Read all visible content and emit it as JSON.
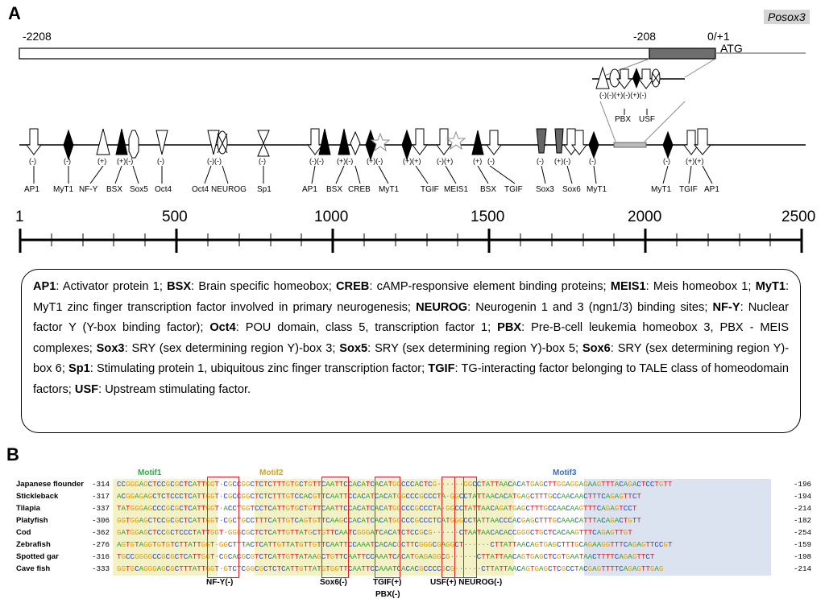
{
  "panel_a": {
    "letter": "A",
    "gene": "Posox3",
    "coords": {
      "start": "-2208",
      "mid": "-208",
      "end": "0/+1",
      "atg": "ATG"
    },
    "inset": {
      "signs": "(-)(-)(+)(-)(+)(-)",
      "labels": [
        "PBX",
        "USF"
      ]
    },
    "sites": [
      {
        "sign": "(-)",
        "label": "AP1"
      },
      {
        "sign": "(-)",
        "label": "MyT1"
      },
      {
        "sign": "(+)",
        "label": "NF-Y"
      },
      {
        "sign": "(+)(-)",
        "label": "BSX"
      },
      {
        "sign": "",
        "label": "Sox5"
      },
      {
        "sign": "(-)",
        "label": "Oct4"
      },
      {
        "sign": "(-)(-)",
        "label": "Oct4"
      },
      {
        "sign": "",
        "label": "NEUROG"
      },
      {
        "sign": "(-)",
        "label": "Sp1"
      },
      {
        "sign": "(-)(-)",
        "label": "AP1"
      },
      {
        "sign": "(+)(-)",
        "label": "BSX"
      },
      {
        "sign": "",
        "label": "CREB"
      },
      {
        "sign": "(+)(-)",
        "label": "MyT1"
      },
      {
        "sign": "(+)(+)",
        "label": "TGIF"
      },
      {
        "sign": "(-)(+)",
        "label": "MEIS1"
      },
      {
        "sign": "(+)",
        "label": "BSX"
      },
      {
        "sign": "(-)",
        "label": "TGIF"
      },
      {
        "sign": "(-)",
        "label": "Sox3"
      },
      {
        "sign": "(+)(-)",
        "label": "Sox6"
      },
      {
        "sign": "(-)",
        "label": "MyT1"
      },
      {
        "sign": "(-)",
        "label": "MyT1"
      },
      {
        "sign": "(+)(+)",
        "label": "TGIF"
      },
      {
        "sign": "",
        "label": "AP1"
      }
    ],
    "scale": {
      "ticks": [
        "1",
        "500",
        "1000",
        "1500",
        "2000",
        "2500"
      ]
    }
  },
  "legend": {
    "entries": [
      {
        "abbr": "AP1",
        "desc": "Activator protein 1"
      },
      {
        "abbr": "BSX",
        "desc": "Brain specific homeobox"
      },
      {
        "abbr": "CREB",
        "desc": "cAMP-responsive element binding proteins"
      },
      {
        "abbr": "MEIS1",
        "desc": "Meis homeobox 1"
      },
      {
        "abbr": "MyT1",
        "desc": "MyT1 zinc finger transcription factor involved in primary neurogenesis"
      },
      {
        "abbr": "NEUROG",
        "desc": "Neurogenin 1 and 3 (ngn1/3) binding sites"
      },
      {
        "abbr": "NF-Y",
        "desc": "Nuclear factor Y (Y-box binding factor)"
      },
      {
        "abbr": "Oct4",
        "desc": "POU domain, class 5, transcription factor 1"
      },
      {
        "abbr": "PBX",
        "desc": "Pre-B-cell leukemia homeobox 3, PBX - MEIS complexes"
      },
      {
        "abbr": "Sox3",
        "desc": "SRY (sex determining region Y)-box 3"
      },
      {
        "abbr": "Sox5",
        "desc": "SRY (sex determining region Y)-box 5"
      },
      {
        "abbr": "Sox6",
        "desc": "SRY (sex determining region Y)-box 6"
      },
      {
        "abbr": "Sp1",
        "desc": "Stimulating protein 1, ubiquitous zinc finger transcription factor"
      },
      {
        "abbr": "TGIF",
        "desc": "TG-interacting factor belonging to TALE class of homeodomain factors"
      },
      {
        "abbr": "USF",
        "desc": "Upstream stimulating factor"
      }
    ]
  },
  "panel_b": {
    "letter": "B",
    "motifs": [
      "Motif1",
      "Motif2",
      "Motif3"
    ],
    "rows": [
      {
        "species": "Japanese flounder",
        "start": "-314",
        "seq": "CCGGGAGCTCCGCGCTCATTGGT·CGCCGGCTCTCTTTGTGCTGTTCAATTCCACATCACATGGCCCACTCG······GGCCTATTAACACATGAGCTTGGAGGAGAAGTTTACAGACTCCTGTT",
        "end": "-196"
      },
      {
        "species": "Stickleback",
        "start": "-317",
        "seq": "ACGGAGAGCTCTCCCTCATTGGT·CGCCGGCTCTCTTTGTCCACGTTCAATTCCACATCACATGGCCCGCCCTA·GGCCTATTAACACATGAGCTTTGCCAACAACTTTCAGAGTTCT",
        "end": "-194"
      },
      {
        "species": "Tilapia",
        "start": "-337",
        "seq": "TATGGGAGCCCGCGCTCATTGGT·ACCTGGTCCTCATTGTGCTGTTCAATTCCACATCACATGGCCCGCCCTA·GGCCTATTAACAGATGAGCTTTGCCAACAAGTTTCAGAGTCCT",
        "end": "-214"
      },
      {
        "species": "Platyfish",
        "start": "-306",
        "seq": "GGTGGAGCTCCGCGCTCATTGGT·CGCTGCCTTTCATTGTCAGTGTTCAAGCCACATCACATGGCCCGCCCTCATGGGCCTATTAACCCACGAGCTTTGCAAACATTTACAGACTGTT",
        "end": "-182"
      },
      {
        "species": "Cod",
        "start": "-362",
        "seq": "GATGGAGCTCCGCTCCCTATTGGT·GGGCGCTCTCATTGTTATGCTGTTCAATCGGGATCACATCTCCGCG······CTAATAACACACCGGGCTGCTCACAAGTTTCAGAGTTGT",
        "end": "-254"
      },
      {
        "species": "Zebrafish",
        "start": "-276",
        "seq": "AGTGTAGGTGTGTCTTATTGGT·GGCTTTACTCATTGTTATGTTGTTCAATTCCAAATCACACGCTTCGGGCGAGGCT······CTTATTAACAGTGAGCTTTGCAGAAGGTTTCAGAGTTCCGT",
        "end": "-159"
      },
      {
        "species": "Spotted gar",
        "start": "-316",
        "seq": "TGCCGGGGCCGCGCTCATTGGT·CGCACGCGTCTCATTGTTATAAGCTGTTCAATTCCAAATCACATGAGAGGCG······CTTATTAACAGTGAGCTCGTGAATAACTTTTCAGAGTTCT",
        "end": "-198"
      },
      {
        "species": "Cave fish",
        "start": "-333",
        "seq": "GGTGCAGGGAGCGCTTTATTGGT·GTCTCGGCGCTCTCATTGTTATGTGGTTCAATTCCAAATCACACGCCCCGCG······CTTATTAACAGTGAGCTCGCCTACGAGTTTTCAGAGTTGAG",
        "end": "-214"
      }
    ],
    "bottom_labels": [
      "NF-Y(-)",
      "Sox6(-)",
      "TGIF(+)",
      "PBX(-)",
      "USF(+) NEUROG(-)"
    ],
    "base_colors": {
      "A": "#2e9e2e",
      "T": "#d42020",
      "G": "#e69900",
      "C": "#1f3fbf"
    }
  }
}
